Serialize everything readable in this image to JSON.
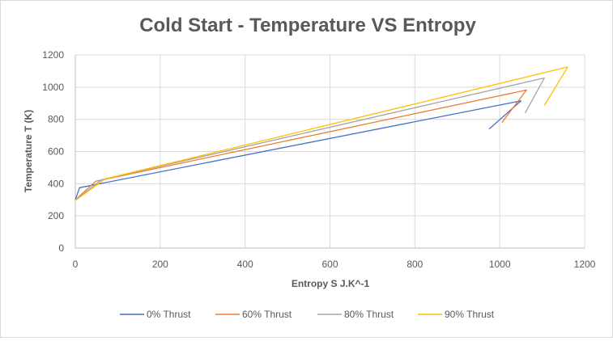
{
  "chart_data": {
    "type": "line",
    "title": "Cold Start - Temperature VS Entropy",
    "xlabel": "Entropy S J.K^-1",
    "ylabel": "Temperature T (K)",
    "xlim": [
      0,
      1200
    ],
    "ylim": [
      0,
      1200
    ],
    "xticks": [
      0,
      200,
      400,
      600,
      800,
      1000,
      1200
    ],
    "yticks": [
      0,
      200,
      400,
      600,
      800,
      1000,
      1200
    ],
    "grid": true,
    "legend_position": "bottom",
    "series": [
      {
        "name": "0% Thrust",
        "color": "#4472C4",
        "points": [
          [
            0,
            300
          ],
          [
            10,
            375
          ],
          [
            1050,
            915
          ],
          [
            975,
            740
          ]
        ]
      },
      {
        "name": "60% Thrust",
        "color": "#ED7D31",
        "points": [
          [
            0,
            300
          ],
          [
            48,
            415
          ],
          [
            1063,
            982
          ],
          [
            1005,
            780
          ]
        ]
      },
      {
        "name": "80% Thrust",
        "color": "#A5A5A5",
        "points": [
          [
            0,
            300
          ],
          [
            62,
            425
          ],
          [
            1105,
            1057
          ],
          [
            1060,
            840
          ]
        ]
      },
      {
        "name": "90% Thrust",
        "color": "#FFC000",
        "points": [
          [
            0,
            295
          ],
          [
            70,
            430
          ],
          [
            1160,
            1125
          ],
          [
            1105,
            885
          ]
        ]
      }
    ]
  }
}
